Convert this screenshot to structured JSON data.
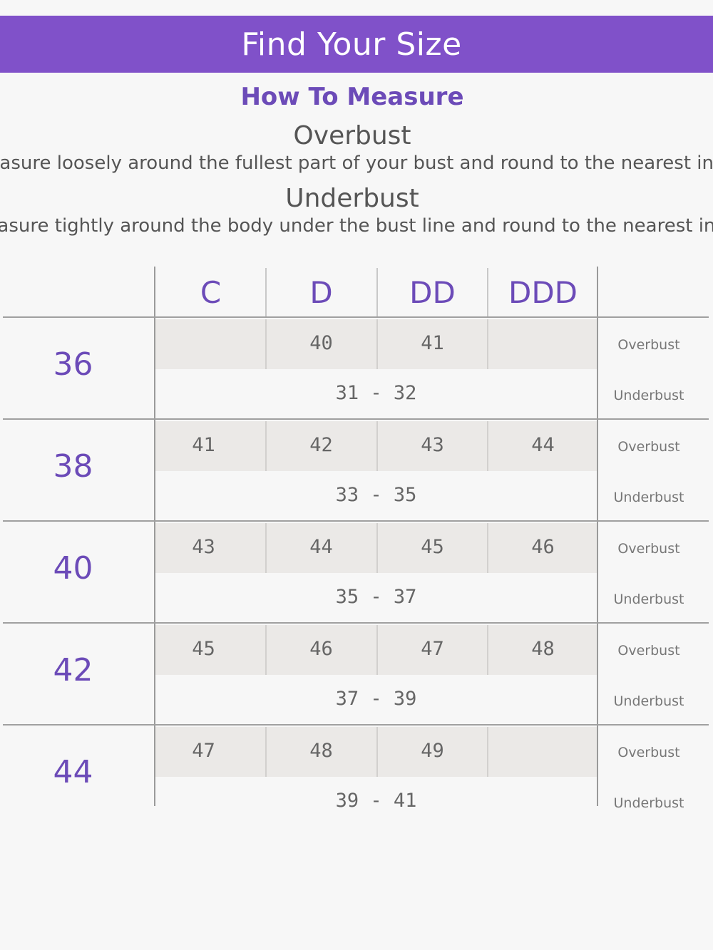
{
  "banner": {
    "title": "Find Your Size"
  },
  "measure": {
    "title": "How To Measure",
    "overbust": {
      "heading": "Overbust",
      "description": "Measure loosely around the fullest part of your bust and round to the nearest inch."
    },
    "underbust": {
      "heading": "Underbust",
      "description": "Measure tightly around the body under the bust line and round to the nearest inch."
    }
  },
  "table": {
    "cups": [
      "C",
      "D",
      "DD",
      "DDD"
    ],
    "overbust_tag": "Overbust",
    "underbust_tag": "Underbust",
    "rows": [
      {
        "band": "36",
        "overbust": [
          "",
          "40",
          "41",
          ""
        ],
        "underbust": "31 - 32"
      },
      {
        "band": "38",
        "overbust": [
          "41",
          "42",
          "43",
          "44"
        ],
        "underbust": "33 - 35"
      },
      {
        "band": "40",
        "overbust": [
          "43",
          "44",
          "45",
          "46"
        ],
        "underbust": "35 - 37"
      },
      {
        "band": "42",
        "overbust": [
          "45",
          "46",
          "47",
          "48"
        ],
        "underbust": "37 - 39"
      },
      {
        "band": "44",
        "overbust": [
          "47",
          "48",
          "49",
          ""
        ],
        "underbust": "39 - 41"
      }
    ]
  }
}
